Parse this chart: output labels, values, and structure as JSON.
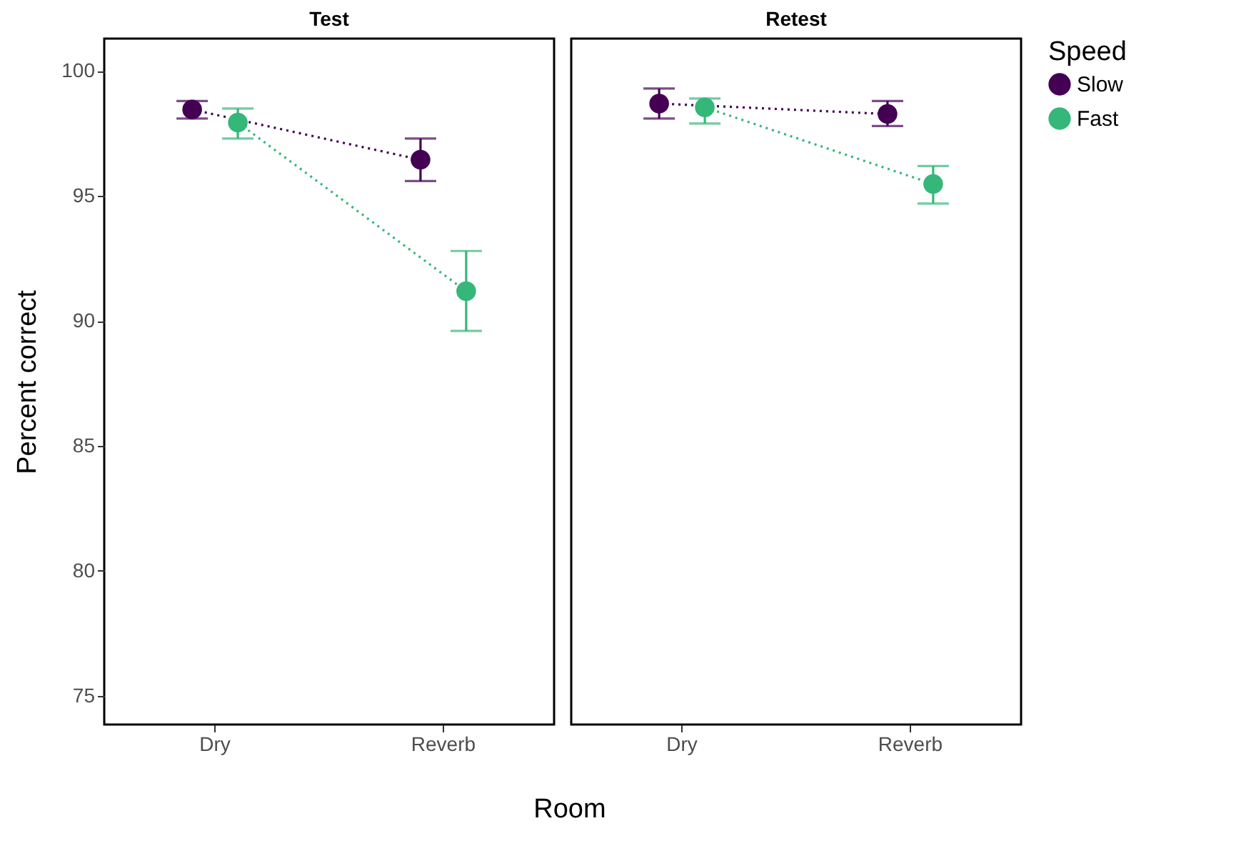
{
  "chart_data": [
    {
      "type": "line",
      "title": "Test",
      "ylabel": "Percent correct",
      "xlabel": "Room",
      "categories": [
        "Dry",
        "Reverb"
      ],
      "ylim": [
        73.85,
        101.3
      ],
      "yticks": [
        75,
        80,
        85,
        90,
        95,
        100
      ],
      "grid": false,
      "legend": "right",
      "marker": "circle",
      "line_style": "dotted",
      "series": [
        {
          "name": "Slow",
          "color": "#440154",
          "values": [
            98.46,
            96.45
          ],
          "errors": [
            [
              98.1,
              98.8
            ],
            [
              95.6,
              97.3
            ]
          ]
        },
        {
          "name": "Fast",
          "color": "#35b779",
          "values": [
            97.94,
            91.19
          ],
          "errors": [
            [
              97.3,
              98.5
            ],
            [
              89.6,
              92.8
            ]
          ]
        }
      ]
    },
    {
      "type": "line",
      "title": "Retest",
      "categories": [
        "Dry",
        "Reverb"
      ],
      "ylim": [
        73.85,
        101.3
      ],
      "yticks": [
        75,
        80,
        85,
        90,
        95,
        100
      ],
      "tick_labels": "x",
      "grid": false,
      "legend": "right",
      "legend_title": "Speed",
      "marker": "circle",
      "line_style": "dotted",
      "series": [
        {
          "name": "Slow",
          "color": "#440154",
          "values": [
            98.7,
            98.28
          ],
          "errors": [
            [
              98.1,
              99.3
            ],
            [
              97.8,
              98.8
            ]
          ]
        },
        {
          "name": "Fast",
          "color": "#35b779",
          "values": [
            98.55,
            95.48
          ],
          "errors": [
            [
              97.9,
              98.9
            ],
            [
              94.7,
              96.2
            ]
          ]
        }
      ]
    }
  ]
}
